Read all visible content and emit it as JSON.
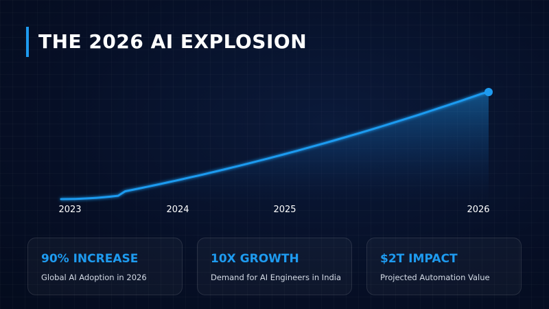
{
  "title": "THE 2026 AI EXPLOSION",
  "colors": {
    "accent": "#1e9bf0",
    "background": "#061027",
    "text": "#ffffff"
  },
  "chart_data": {
    "type": "area",
    "title": "",
    "xlabel": "",
    "ylabel": "",
    "categories": [
      "2023",
      "2024",
      "2025",
      "2026"
    ],
    "series": [
      {
        "values": [
          0.12,
          0.19,
          0.52,
          1.0
        ],
        "x": [
          2023,
          2024,
          2025,
          2026
        ],
        "color": "#1e9bf0",
        "marker_on_last": true
      }
    ],
    "y_axis_visible": false,
    "grid": false
  },
  "cards": [
    {
      "title": "90% INCREASE",
      "subtitle": "Global AI Adoption in 2026"
    },
    {
      "title": "10X GROWTH",
      "subtitle": "Demand for AI Engineers in India"
    },
    {
      "title": "$2T IMPACT",
      "subtitle": "Projected Automation Value"
    }
  ]
}
